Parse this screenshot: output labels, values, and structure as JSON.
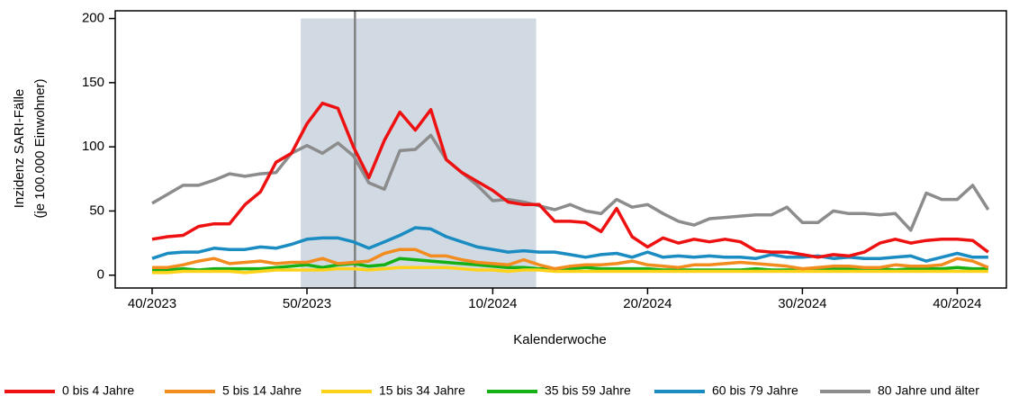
{
  "chart_data": {
    "type": "line",
    "y_label_lines": [
      "Inzidenz SARI-Fälle",
      "(je 100.000 Einwohner)"
    ],
    "x_label": "Kalenderwoche",
    "categories": [
      "40/2023",
      null,
      null,
      null,
      null,
      null,
      null,
      null,
      null,
      null,
      "50/2023",
      null,
      null,
      null,
      null,
      null,
      null,
      null,
      null,
      null,
      null,
      null,
      "10/2024",
      null,
      null,
      null,
      null,
      null,
      null,
      null,
      null,
      null,
      "20/2024",
      null,
      null,
      null,
      null,
      null,
      null,
      null,
      null,
      null,
      "30/2024",
      null,
      null,
      null,
      null,
      null,
      null,
      null,
      null,
      null,
      "40/2024",
      null,
      null
    ],
    "ylim": [
      -10,
      206
    ],
    "yticks": [
      0,
      50,
      100,
      150,
      200
    ],
    "highlight": {
      "from": 9.6,
      "to": 24.8,
      "color": "#d1dae3"
    },
    "marker_line": {
      "at": 13.1,
      "color": "#808080"
    },
    "series": [
      {
        "name": "0 bis 4 Jahre",
        "color": "#ee1111",
        "values": [
          28,
          30,
          31,
          38,
          40,
          40,
          55,
          65,
          88,
          95,
          118,
          134,
          130,
          100,
          76,
          105,
          127,
          113,
          129,
          90,
          80,
          73,
          66,
          57,
          55,
          55,
          42,
          42,
          41,
          34,
          52,
          30,
          22,
          29,
          25,
          28,
          26,
          28,
          26,
          19,
          18,
          18,
          16,
          14,
          16,
          15,
          18,
          25,
          28,
          25,
          27,
          28,
          28,
          27,
          18
        ]
      },
      {
        "name": "5 bis 14 Jahre",
        "color": "#f28c1e",
        "values": [
          6,
          6,
          8,
          11,
          13,
          9,
          10,
          11,
          9,
          10,
          10,
          13,
          9,
          10,
          11,
          17,
          20,
          20,
          15,
          15,
          12,
          10,
          9,
          8,
          12,
          8,
          5,
          7,
          8,
          8,
          9,
          11,
          8,
          7,
          6,
          8,
          8,
          9,
          10,
          9,
          8,
          7,
          5,
          6,
          7,
          7,
          6,
          6,
          8,
          7,
          7,
          8,
          13,
          11,
          6
        ]
      },
      {
        "name": "15 bis 34 Jahre",
        "color": "#ffd21a",
        "values": [
          2,
          2,
          3,
          3,
          3,
          3,
          2,
          3,
          4,
          4,
          4,
          4,
          5,
          5,
          4,
          5,
          6,
          6,
          6,
          6,
          5,
          4,
          4,
          3,
          4,
          4,
          3,
          3,
          3,
          3,
          3,
          3,
          3,
          3,
          3,
          3,
          3,
          3,
          3,
          3,
          3,
          3,
          3,
          3,
          3,
          3,
          3,
          3,
          3,
          3,
          3,
          3,
          3,
          3,
          3
        ]
      },
      {
        "name": "35 bis 59 Jahre",
        "color": "#14b014",
        "values": [
          4,
          4,
          5,
          4,
          5,
          5,
          5,
          5,
          6,
          7,
          8,
          6,
          8,
          9,
          7,
          8,
          13,
          12,
          11,
          10,
          9,
          8,
          7,
          6,
          6,
          5,
          5,
          5,
          6,
          5,
          5,
          5,
          5,
          4,
          4,
          4,
          4,
          4,
          4,
          5,
          4,
          4,
          4,
          4,
          5,
          5,
          5,
          5,
          4,
          5,
          5,
          5,
          6,
          5,
          5
        ]
      },
      {
        "name": "60 bis 79 Jahre",
        "color": "#1a8cc2",
        "values": [
          13,
          17,
          18,
          18,
          21,
          20,
          20,
          22,
          21,
          24,
          28,
          29,
          29,
          26,
          21,
          26,
          31,
          37,
          36,
          30,
          26,
          22,
          20,
          18,
          19,
          18,
          18,
          16,
          14,
          16,
          17,
          14,
          18,
          14,
          15,
          14,
          15,
          14,
          14,
          13,
          16,
          14,
          14,
          15,
          13,
          14,
          13,
          13,
          14,
          15,
          11,
          14,
          17,
          14,
          14
        ]
      },
      {
        "name": "80 Jahre und älter",
        "color": "#8c8c8c",
        "values": [
          56,
          63,
          70,
          70,
          74,
          79,
          77,
          79,
          80,
          95,
          101,
          95,
          103,
          93,
          72,
          67,
          97,
          98,
          109,
          90,
          80,
          70,
          58,
          59,
          57,
          54,
          51,
          55,
          50,
          48,
          59,
          53,
          55,
          48,
          42,
          39,
          44,
          45,
          46,
          47,
          47,
          53,
          41,
          41,
          50,
          48,
          48,
          47,
          48,
          35,
          64,
          59,
          59,
          70,
          51
        ]
      }
    ]
  }
}
